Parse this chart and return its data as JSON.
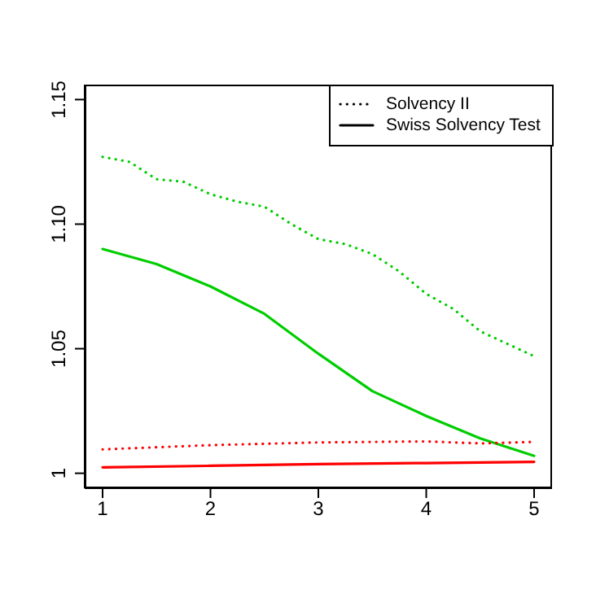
{
  "chart_data": {
    "type": "line",
    "x": [
      1,
      1.25,
      1.5,
      1.75,
      2,
      2.25,
      2.5,
      2.75,
      3,
      3.25,
      3.5,
      3.75,
      4,
      4.25,
      4.5,
      4.75,
      5
    ],
    "series": [
      {
        "color": "#00cd00",
        "line_style": "dotted",
        "values": [
          1.127,
          1.125,
          1.118,
          1.117,
          1.112,
          1.109,
          1.107,
          1.1,
          1.094,
          1.092,
          1.088,
          1.081,
          1.072,
          1.066,
          1.057,
          1.052,
          1.047
        ]
      },
      {
        "color": "#00cd00",
        "line_style": "solid",
        "values": [
          1.09,
          null,
          1.084,
          null,
          1.075,
          null,
          1.064,
          null,
          1.048,
          null,
          1.033,
          null,
          1.023,
          null,
          1.014,
          null,
          1.007
        ]
      },
      {
        "color": "#ff0000",
        "line_style": "dotted",
        "values": [
          1.0096,
          null,
          null,
          null,
          1.0113,
          null,
          null,
          null,
          1.0124,
          null,
          null,
          null,
          1.0128,
          null,
          1.012,
          null,
          1.0126
        ]
      },
      {
        "color": "#ff0000",
        "line_style": "solid",
        "values": [
          1.0024,
          null,
          null,
          null,
          1.003,
          null,
          null,
          null,
          1.0037,
          null,
          null,
          null,
          1.0041,
          null,
          null,
          null,
          1.0046
        ]
      }
    ],
    "xlim": [
      0.834,
      5.166
    ],
    "xticks": [
      1,
      2,
      3,
      4,
      5
    ],
    "ylim": [
      0.994,
      1.156
    ],
    "yticks": [
      {
        "value": 1,
        "label": "1"
      },
      1.05,
      {
        "value": 1.1,
        "label": "1.10"
      },
      1.15
    ],
    "annotations": [
      "Solvency II",
      "Swiss Solvency Test"
    ]
  }
}
